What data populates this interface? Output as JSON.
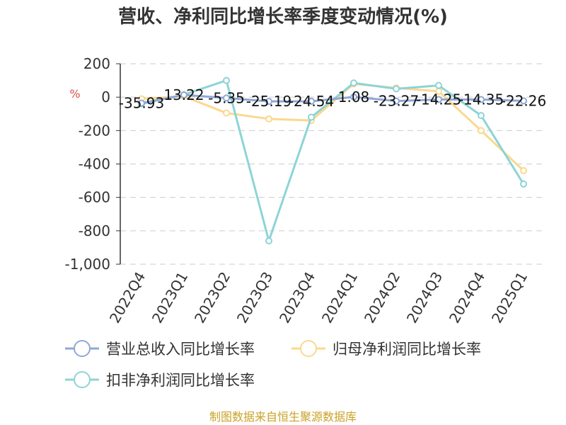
{
  "chart_data": {
    "type": "line",
    "title": "营收、净利同比增长率季度变动情况(%)",
    "ylabel": "%",
    "ylim": [
      -1000,
      200
    ],
    "yticks": [
      200,
      0,
      -200,
      -400,
      -600,
      -800,
      -1000
    ],
    "ytick_labels": [
      "200",
      "0",
      "-200",
      "-400",
      "-600",
      "-800",
      "-1,000"
    ],
    "grid": true,
    "legend_position": "bottom",
    "categories": [
      "2022Q4",
      "2023Q1",
      "2023Q2",
      "2023Q3",
      "2023Q4",
      "2024Q1",
      "2024Q2",
      "2024Q3",
      "2024Q4",
      "2025Q1"
    ],
    "series": [
      {
        "name": "营业总收入同比增长率",
        "color": "#8fa8d6",
        "values": [
          -35.93,
          13.22,
          -5.35,
          -25.19,
          -24.54,
          1.08,
          -23.27,
          -14.25,
          -14.35,
          -22.26
        ],
        "labels": [
          "-35.93",
          "13.22",
          "-5.35",
          "-25.19",
          "-24.54",
          "1.08",
          "-23.27",
          "-14.25",
          "-14.35",
          "-22.26"
        ]
      },
      {
        "name": "归母净利润同比增长率",
        "color": "#fbd88e",
        "values": [
          -10,
          5,
          -95,
          -130,
          -140,
          80,
          55,
          35,
          -200,
          -440
        ]
      },
      {
        "name": "扣非净利润同比增长率",
        "color": "#8dd4d6",
        "values": [
          -40,
          15,
          100,
          -860,
          -120,
          85,
          50,
          70,
          -110,
          -520
        ]
      }
    ]
  },
  "footer": {
    "source": "制图数据来自恒生聚源数据库"
  }
}
